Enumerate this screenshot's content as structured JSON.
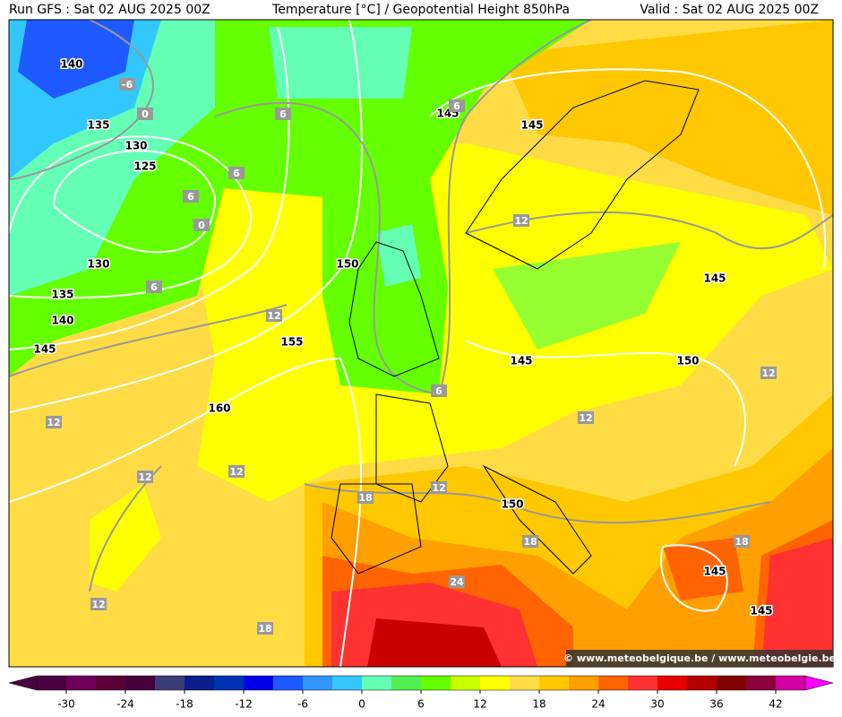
{
  "header": {
    "run": "Run GFS : Sat 02 AUG 2025 00Z",
    "title": "Temperature [°C] / Geopotential Height 850hPa",
    "valid": "Valid : Sat 02 AUG 2025 00Z"
  },
  "map": {
    "height_labels": [
      140,
      135,
      130,
      125,
      130,
      135,
      140,
      145,
      145,
      145,
      150,
      155,
      160,
      145,
      145,
      150,
      150,
      145,
      145
    ],
    "temperature_labels": [
      -6,
      0,
      6,
      6,
      6,
      6,
      0,
      6,
      12,
      12,
      12,
      12,
      12,
      12,
      12,
      12,
      6,
      18,
      18,
      18,
      24,
      12,
      18
    ],
    "watermark": "© www.meteobelgique.be / www.meteobelgie.be"
  },
  "colorbar": {
    "lim": [
      -33,
      45
    ],
    "colors": [
      "#4b0041",
      "#6e005a",
      "#5a0037",
      "#46003c",
      "#3c3c78",
      "#0a1e8c",
      "#0032b4",
      "#0000e6",
      "#1e5aff",
      "#3296ff",
      "#32c8ff",
      "#64ffb4",
      "#50f050",
      "#64ff00",
      "#c8ff00",
      "#ffff00",
      "#ffdc46",
      "#ffc800",
      "#ffa000",
      "#ff6400",
      "#ff3232",
      "#e60000",
      "#b40000",
      "#820000",
      "#8c003c",
      "#d200a0"
    ],
    "ticks": [
      -30,
      -24,
      -18,
      -12,
      -6,
      0,
      6,
      12,
      18,
      24,
      30,
      36,
      42
    ]
  }
}
